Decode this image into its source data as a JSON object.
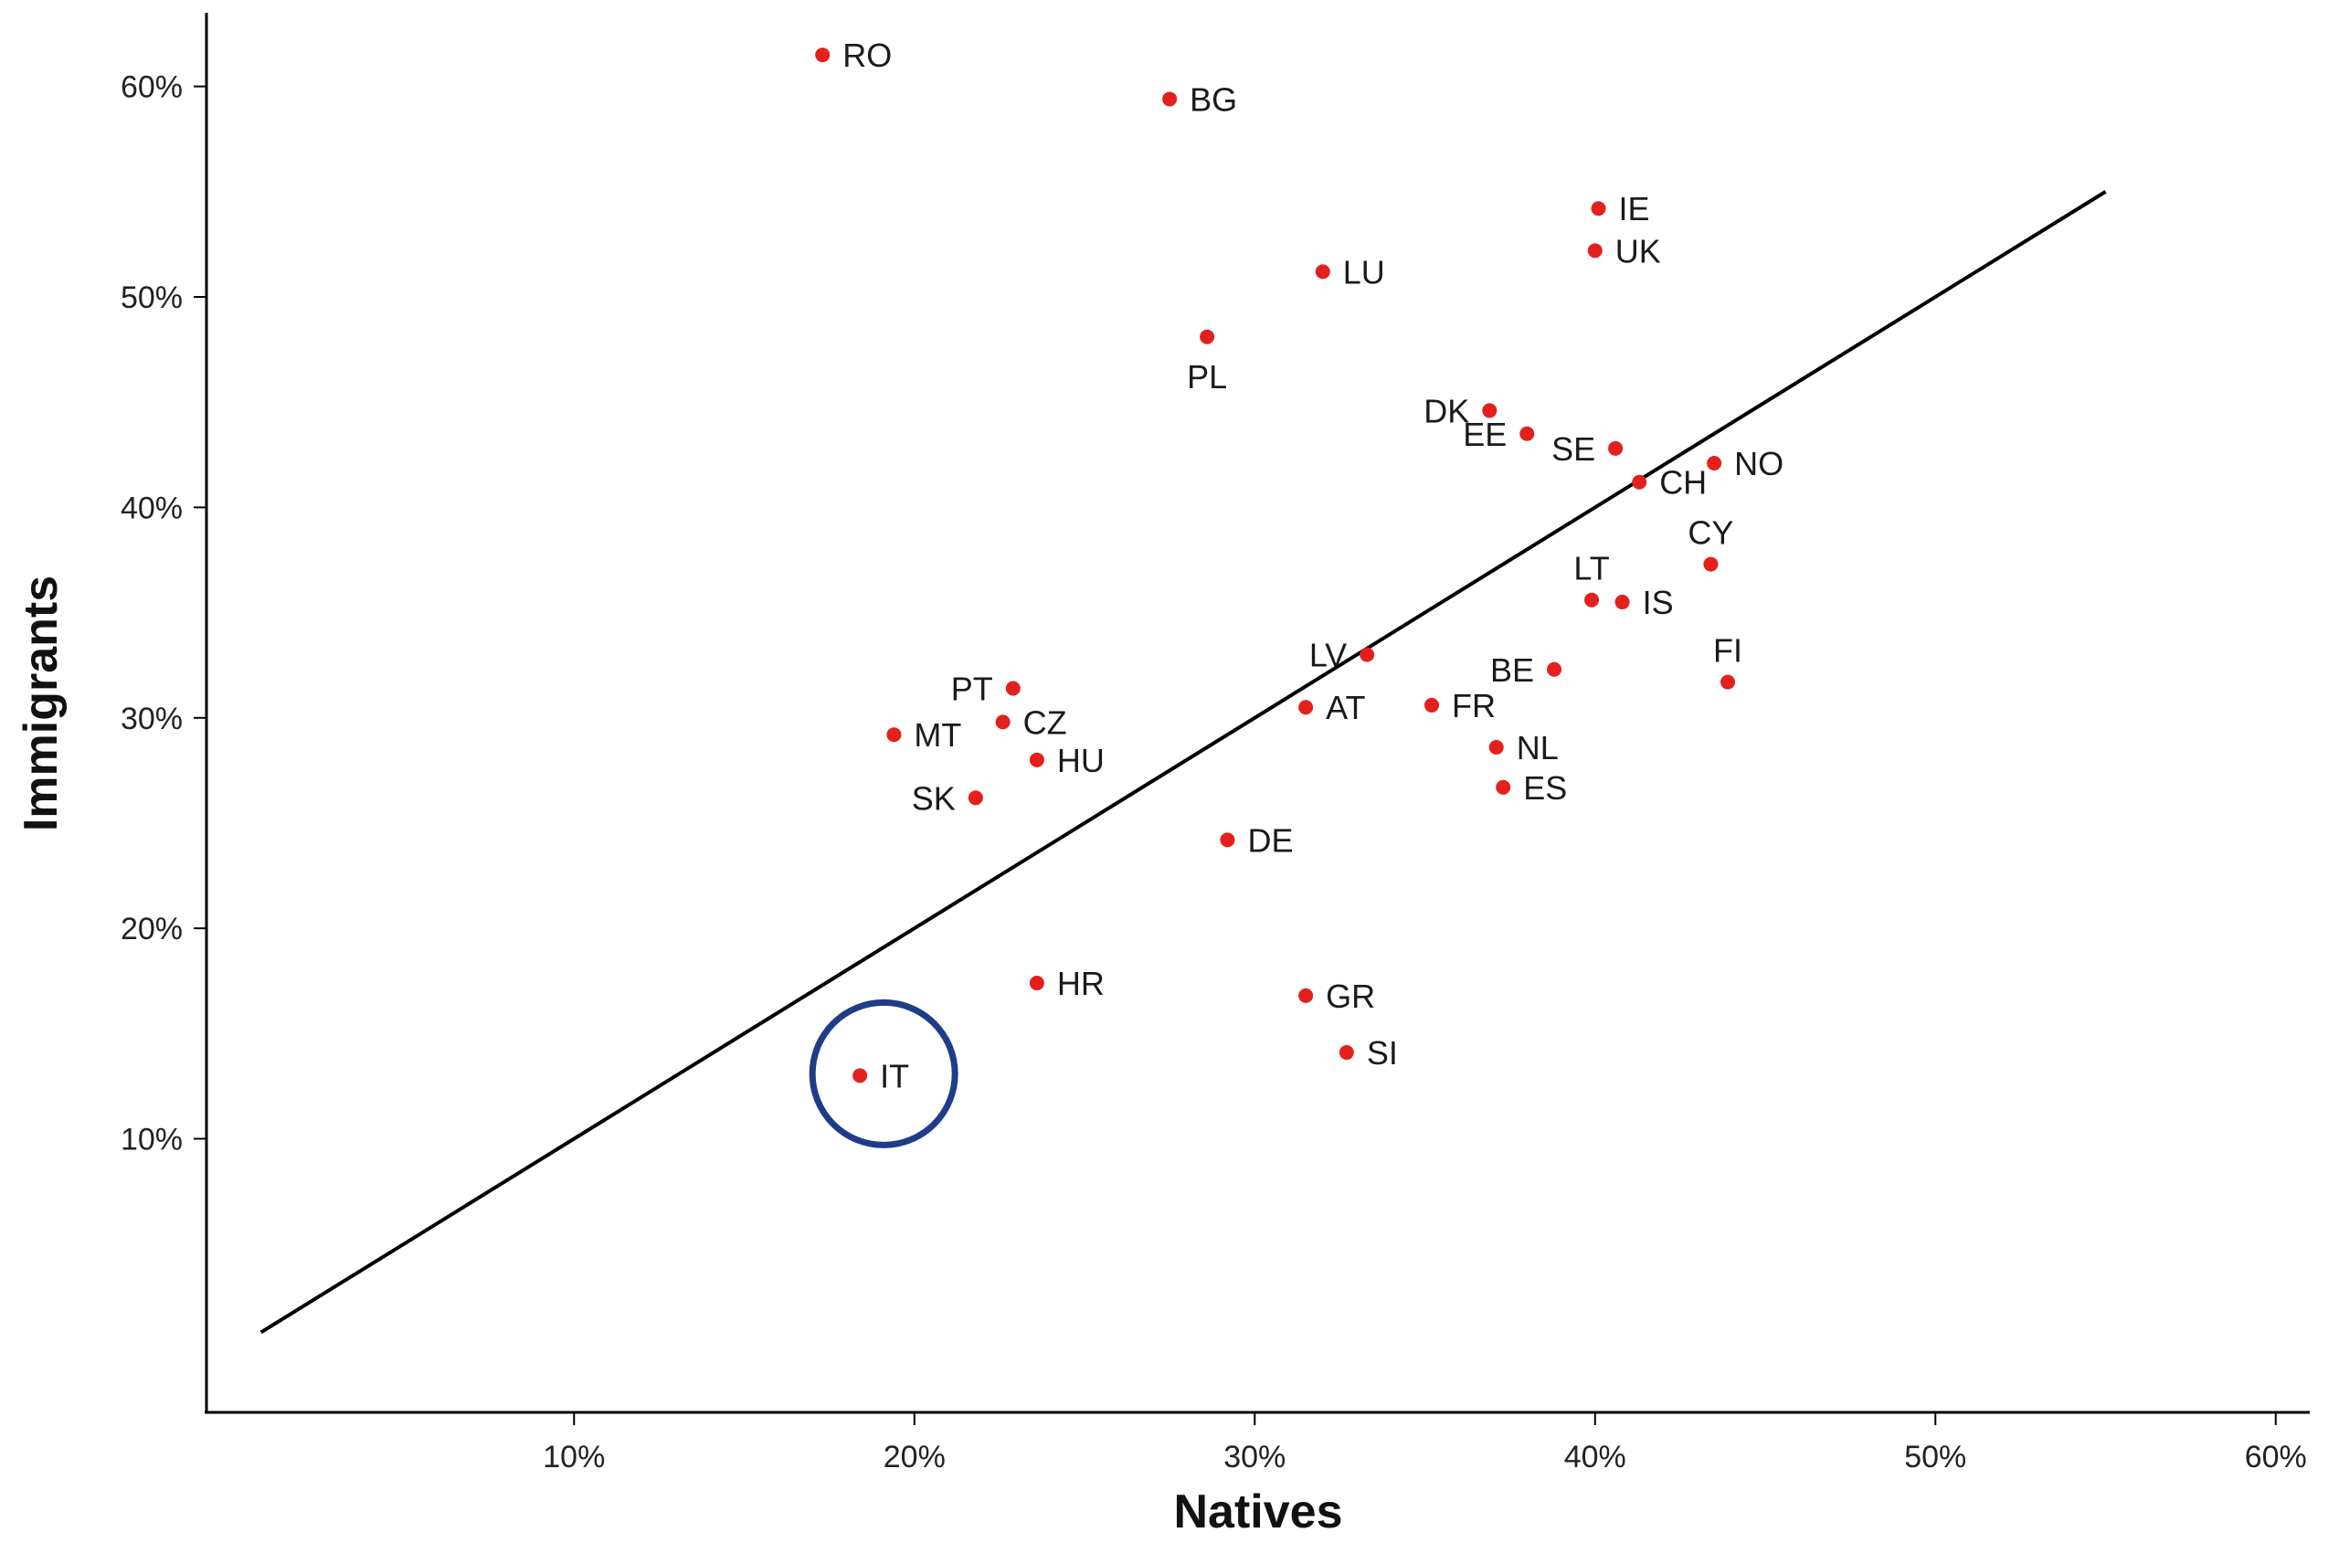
{
  "chart_data": {
    "type": "scatter",
    "xlabel": "Natives",
    "ylabel": "Immigrants",
    "x_ticks": [
      {
        "value": 10,
        "label": "10%"
      },
      {
        "value": 20,
        "label": "20%"
      },
      {
        "value": 30,
        "label": "30%"
      },
      {
        "value": 40,
        "label": "40%"
      },
      {
        "value": 50,
        "label": "50%"
      },
      {
        "value": 60,
        "label": "60%"
      }
    ],
    "y_ticks": [
      {
        "value": 10,
        "label": "10%"
      },
      {
        "value": 20,
        "label": "20%"
      },
      {
        "value": 30,
        "label": "30%"
      },
      {
        "value": 40,
        "label": "40%"
      },
      {
        "value": 50,
        "label": "50%"
      },
      {
        "value": 60,
        "label": "60%"
      }
    ],
    "xlim": [
      -0.8,
      61
    ],
    "ylim": [
      -3,
      63.5
    ],
    "grid": false,
    "legend": "none",
    "point_color": "#e3201b",
    "line_color": "#000000",
    "highlight_color": "#1f3c88",
    "reference_line": {
      "from": [
        0.8,
        0.8
      ],
      "to": [
        55,
        55
      ]
    },
    "highlight": "IT",
    "points": [
      {
        "label": "RO",
        "x": 17.3,
        "y": 61.5,
        "pos": "right"
      },
      {
        "label": "BG",
        "x": 27.5,
        "y": 59.4,
        "pos": "right"
      },
      {
        "label": "IE",
        "x": 40.1,
        "y": 54.2,
        "pos": "right"
      },
      {
        "label": "UK",
        "x": 40.0,
        "y": 52.2,
        "pos": "right"
      },
      {
        "label": "LU",
        "x": 32.0,
        "y": 51.2,
        "pos": "right"
      },
      {
        "label": "PL",
        "x": 28.6,
        "y": 48.1,
        "pos": "below"
      },
      {
        "label": "DK",
        "x": 36.9,
        "y": 44.6,
        "pos": "left"
      },
      {
        "label": "EE",
        "x": 38.0,
        "y": 43.5,
        "pos": "left"
      },
      {
        "label": "SE",
        "x": 40.6,
        "y": 42.8,
        "pos": "left"
      },
      {
        "label": "NO",
        "x": 43.5,
        "y": 42.1,
        "pos": "right"
      },
      {
        "label": "CH",
        "x": 41.3,
        "y": 41.2,
        "pos": "right"
      },
      {
        "label": "CY",
        "x": 43.4,
        "y": 37.3,
        "pos": "above"
      },
      {
        "label": "IS",
        "x": 40.8,
        "y": 35.5,
        "pos": "right"
      },
      {
        "label": "LT",
        "x": 39.9,
        "y": 35.6,
        "pos": "above"
      },
      {
        "label": "FI",
        "x": 43.9,
        "y": 31.7,
        "pos": "above"
      },
      {
        "label": "LV",
        "x": 33.3,
        "y": 33.0,
        "pos": "left"
      },
      {
        "label": "BE",
        "x": 38.8,
        "y": 32.3,
        "pos": "left"
      },
      {
        "label": "PT",
        "x": 22.9,
        "y": 31.4,
        "pos": "left"
      },
      {
        "label": "AT",
        "x": 31.5,
        "y": 30.5,
        "pos": "right"
      },
      {
        "label": "FR",
        "x": 35.2,
        "y": 30.6,
        "pos": "right"
      },
      {
        "label": "CZ",
        "x": 22.6,
        "y": 29.8,
        "pos": "right"
      },
      {
        "label": "MT",
        "x": 19.4,
        "y": 29.2,
        "pos": "right"
      },
      {
        "label": "NL",
        "x": 37.1,
        "y": 28.6,
        "pos": "right"
      },
      {
        "label": "HU",
        "x": 23.6,
        "y": 28.0,
        "pos": "right"
      },
      {
        "label": "ES",
        "x": 37.3,
        "y": 26.7,
        "pos": "right"
      },
      {
        "label": "SK",
        "x": 21.8,
        "y": 26.2,
        "pos": "left"
      },
      {
        "label": "DE",
        "x": 29.2,
        "y": 24.2,
        "pos": "right"
      },
      {
        "label": "HR",
        "x": 23.6,
        "y": 17.4,
        "pos": "right"
      },
      {
        "label": "GR",
        "x": 31.5,
        "y": 16.8,
        "pos": "right"
      },
      {
        "label": "SI",
        "x": 32.7,
        "y": 14.1,
        "pos": "right"
      },
      {
        "label": "IT",
        "x": 18.4,
        "y": 13.0,
        "pos": "right"
      }
    ]
  }
}
